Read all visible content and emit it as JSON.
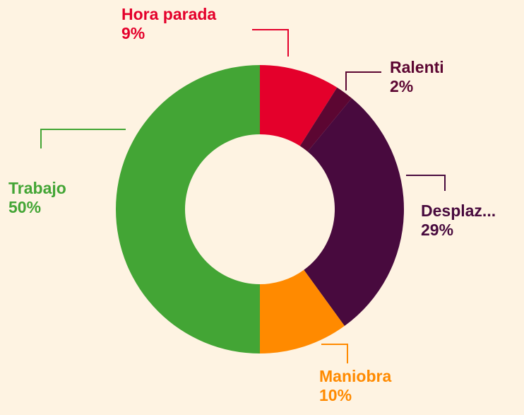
{
  "chart_data": {
    "type": "donut",
    "categories": [
      "Hora parada",
      "Ralenti",
      "Desplaz...",
      "Maniobra",
      "Trabajo"
    ],
    "values": [
      9,
      2,
      29,
      10,
      50
    ],
    "value_labels": [
      "9%",
      "2%",
      "29%",
      "10%",
      "50%"
    ],
    "colors": [
      "#e4002b",
      "#5c0632",
      "#480a3e",
      "#ff8a00",
      "#43a535"
    ]
  }
}
